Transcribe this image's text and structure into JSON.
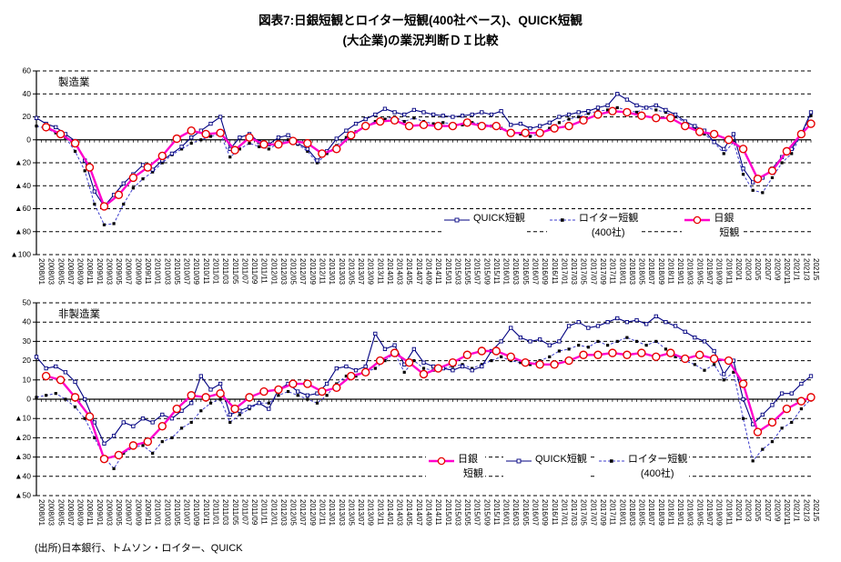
{
  "title": {
    "line1": "図表7:日銀短観とロイター短観(400社ベース)、QUICK短観",
    "line2": "(大企業)の業況判断ＤＩ比較"
  },
  "source": "(出所)日本銀行、トムソン・ロイター、QUICK",
  "colors": {
    "quick_line": "#000080",
    "reuters_line": "#3c3ccc",
    "reuters_marker": "#000000",
    "tankan_line": "#ff00cc",
    "tankan_marker": "#e60000",
    "grid": "#000000"
  },
  "x_labels": [
    "2008/01",
    "2008/03",
    "2008/05",
    "2008/07",
    "2008/09",
    "2008/11",
    "2009/01",
    "2009/03",
    "2009/05",
    "2009/07",
    "2009/09",
    "2009/11",
    "2010/01",
    "2010/03",
    "2010/05",
    "2010/07",
    "2010/09",
    "2010/11",
    "2011/01",
    "2011/03",
    "2011/05",
    "2011/07",
    "2011/09",
    "2011/11",
    "2012/01",
    "2012/03",
    "2012/05",
    "2012/07",
    "2012/09",
    "2012/11",
    "2013/01",
    "2013/03",
    "2013/05",
    "2013/07",
    "2013/09",
    "2013/11",
    "2014/01",
    "2014/03",
    "2014/05",
    "2014/07",
    "2014/09",
    "2014/11",
    "2015/01",
    "2015/03",
    "2015/05",
    "2015/07",
    "2015/09",
    "2015/11",
    "2016/01",
    "2016/03",
    "2016/05",
    "2016/07",
    "2016/09",
    "2016/11",
    "2017/01",
    "2017/03",
    "2017/05",
    "2017/07",
    "2017/09",
    "2017/11",
    "2018/01",
    "2018/03",
    "2018/05",
    "2018/07",
    "2018/09",
    "2018/11",
    "2019/01",
    "2019/03",
    "2019/05",
    "2019/07",
    "2019/09",
    "2019/11",
    "2020/1",
    "2020/3",
    "2020/5",
    "2020/7",
    "2020/9",
    "2020/11",
    "2021/1",
    "2021/3",
    "2021/5"
  ],
  "chart_data": [
    {
      "type": "line",
      "panel_label": "製造業",
      "x_note": "monthly series sampled at the bi-monthly axis ticks 2008/01-2021/5; 日銀短観 is quarterly",
      "y_axis": {
        "max": 60,
        "min": -100,
        "step": 20,
        "ticks": [
          "60",
          "40",
          "20",
          "0",
          "▲20",
          "▲40",
          "▲60",
          "▲80",
          "▲100"
        ]
      },
      "series": {
        "quick": {
          "name": "QUICK短観",
          "values": [
            19,
            14,
            11,
            5,
            -1,
            -18,
            -45,
            -58,
            -48,
            -38,
            -30,
            -22,
            -26,
            -18,
            -12,
            -6,
            2,
            8,
            14,
            20,
            -8,
            2,
            5,
            -2,
            -4,
            2,
            4,
            -3,
            -8,
            -18,
            -10,
            1,
            8,
            14,
            18,
            22,
            27,
            24,
            22,
            26,
            24,
            22,
            21,
            20,
            21,
            22,
            24,
            22,
            25,
            13,
            14,
            10,
            12,
            15,
            20,
            22,
            24,
            25,
            28,
            30,
            40,
            35,
            30,
            28,
            30,
            26,
            22,
            16,
            12,
            8,
            -2,
            -8,
            5,
            -25,
            -37,
            -33,
            -25,
            -15,
            -8,
            5,
            24
          ]
        },
        "reuters": {
          "name": "ロイター短観",
          "name2": "(400社)",
          "values": [
            12,
            10,
            6,
            2,
            -10,
            -27,
            -56,
            -74,
            -73,
            -56,
            -42,
            -34,
            -28,
            -20,
            -13,
            -8,
            -3,
            0,
            3,
            5,
            -15,
            -8,
            -3,
            -6,
            -8,
            -3,
            0,
            -4,
            -10,
            -20,
            -12,
            -5,
            2,
            7,
            12,
            16,
            18,
            20,
            16,
            19,
            16,
            14,
            15,
            14,
            13,
            15,
            14,
            12,
            10,
            8,
            5,
            3,
            5,
            10,
            15,
            18,
            20,
            23,
            25,
            26,
            28,
            26,
            24,
            28,
            26,
            24,
            20,
            15,
            10,
            5,
            -2,
            -12,
            -2,
            -30,
            -44,
            -46,
            -33,
            -20,
            -12,
            5,
            21
          ]
        },
        "tankan": {
          "name": "日銀",
          "name2": "短観",
          "points": [
            [
              "2008/03",
              11
            ],
            [
              "2008/06",
              5
            ],
            [
              "2008/09",
              -3
            ],
            [
              "2008/12",
              -24
            ],
            [
              "2009/03",
              -58
            ],
            [
              "2009/06",
              -48
            ],
            [
              "2009/09",
              -33
            ],
            [
              "2009/12",
              -24
            ],
            [
              "2010/03",
              -14
            ],
            [
              "2010/06",
              1
            ],
            [
              "2010/09",
              8
            ],
            [
              "2010/12",
              5
            ],
            [
              "2011/03",
              6
            ],
            [
              "2011/06",
              -9
            ],
            [
              "2011/09",
              2
            ],
            [
              "2011/12",
              -4
            ],
            [
              "2012/03",
              -4
            ],
            [
              "2012/06",
              -1
            ],
            [
              "2012/09",
              -3
            ],
            [
              "2012/12",
              -12
            ],
            [
              "2013/03",
              -8
            ],
            [
              "2013/06",
              4
            ],
            [
              "2013/09",
              12
            ],
            [
              "2013/12",
              16
            ],
            [
              "2014/03",
              17
            ],
            [
              "2014/06",
              12
            ],
            [
              "2014/09",
              13
            ],
            [
              "2014/12",
              12
            ],
            [
              "2015/03",
              12
            ],
            [
              "2015/06",
              15
            ],
            [
              "2015/09",
              12
            ],
            [
              "2015/12",
              12
            ],
            [
              "2016/03",
              6
            ],
            [
              "2016/06",
              6
            ],
            [
              "2016/09",
              6
            ],
            [
              "2016/12",
              10
            ],
            [
              "2017/03",
              12
            ],
            [
              "2017/06",
              17
            ],
            [
              "2017/09",
              22
            ],
            [
              "2017/12",
              25
            ],
            [
              "2018/03",
              24
            ],
            [
              "2018/06",
              21
            ],
            [
              "2018/09",
              19
            ],
            [
              "2018/12",
              19
            ],
            [
              "2019/03",
              12
            ],
            [
              "2019/06",
              7
            ],
            [
              "2019/09",
              5
            ],
            [
              "2019/12",
              0
            ],
            [
              "2020/03",
              -8
            ],
            [
              "2020/06",
              -34
            ],
            [
              "2020/09",
              -27
            ],
            [
              "2020/12",
              -10
            ],
            [
              "2021/03",
              5
            ],
            [
              "2021/06",
              14
            ]
          ]
        }
      }
    },
    {
      "type": "line",
      "panel_label": "非製造業",
      "x_note": "monthly series sampled at the bi-monthly axis ticks 2008/01-2021/5; 日銀短観 is quarterly",
      "y_axis": {
        "max": 50,
        "min": -50,
        "step": 10,
        "ticks": [
          "50",
          "40",
          "30",
          "20",
          "10",
          "0",
          "▲10",
          "▲20",
          "▲30",
          "▲40",
          "▲50"
        ]
      },
      "series": {
        "quick": {
          "name": "QUICK短観",
          "values": [
            22,
            16,
            17,
            14,
            9,
            0,
            -12,
            -23,
            -19,
            -12,
            -14,
            -10,
            -12,
            -8,
            -10,
            -6,
            -2,
            12,
            5,
            8,
            -8,
            -6,
            -4,
            -2,
            -5,
            5,
            8,
            4,
            2,
            3,
            8,
            16,
            17,
            15,
            17,
            34,
            26,
            28,
            18,
            26,
            19,
            17,
            16,
            15,
            17,
            15,
            17,
            25,
            30,
            37,
            32,
            30,
            31,
            28,
            30,
            38,
            40,
            37,
            38,
            40,
            42,
            40,
            41,
            39,
            43,
            40,
            38,
            35,
            32,
            30,
            25,
            13,
            20,
            0,
            -13,
            -8,
            -3,
            3,
            3,
            8,
            12
          ]
        },
        "reuters": {
          "name": "ロイター短観",
          "name2": "(400社)",
          "values": [
            1,
            2,
            3,
            0,
            -4,
            -10,
            -20,
            -30,
            -36,
            -28,
            -25,
            -24,
            -28,
            -22,
            -20,
            -15,
            -12,
            -6,
            -2,
            0,
            -12,
            -8,
            -5,
            -2,
            -2,
            2,
            4,
            2,
            0,
            -2,
            2,
            8,
            12,
            12,
            14,
            16,
            20,
            24,
            14,
            20,
            16,
            15,
            16,
            17,
            18,
            16,
            18,
            20,
            22,
            20,
            19,
            18,
            20,
            22,
            25,
            26,
            28,
            27,
            30,
            28,
            30,
            32,
            30,
            28,
            30,
            26,
            22,
            20,
            18,
            15,
            18,
            10,
            14,
            -10,
            -32,
            -26,
            -22,
            -15,
            -12,
            -5,
            0
          ]
        },
        "tankan": {
          "name": "日銀",
          "name2": "短観",
          "points": [
            [
              "2008/03",
              12
            ],
            [
              "2008/06",
              10
            ],
            [
              "2008/09",
              1
            ],
            [
              "2008/12",
              -9
            ],
            [
              "2009/03",
              -31
            ],
            [
              "2009/06",
              -29
            ],
            [
              "2009/09",
              -24
            ],
            [
              "2009/12",
              -22
            ],
            [
              "2010/03",
              -14
            ],
            [
              "2010/06",
              -5
            ],
            [
              "2010/09",
              2
            ],
            [
              "2010/12",
              1
            ],
            [
              "2011/03",
              3
            ],
            [
              "2011/06",
              -5
            ],
            [
              "2011/09",
              1
            ],
            [
              "2011/12",
              4
            ],
            [
              "2012/03",
              5
            ],
            [
              "2012/06",
              8
            ],
            [
              "2012/09",
              8
            ],
            [
              "2012/12",
              4
            ],
            [
              "2013/03",
              6
            ],
            [
              "2013/06",
              12
            ],
            [
              "2013/09",
              14
            ],
            [
              "2013/12",
              20
            ],
            [
              "2014/03",
              24
            ],
            [
              "2014/06",
              19
            ],
            [
              "2014/09",
              13
            ],
            [
              "2014/12",
              16
            ],
            [
              "2015/03",
              19
            ],
            [
              "2015/06",
              23
            ],
            [
              "2015/09",
              25
            ],
            [
              "2015/12",
              25
            ],
            [
              "2016/03",
              22
            ],
            [
              "2016/06",
              19
            ],
            [
              "2016/09",
              18
            ],
            [
              "2016/12",
              18
            ],
            [
              "2017/03",
              20
            ],
            [
              "2017/06",
              23
            ],
            [
              "2017/09",
              23
            ],
            [
              "2017/12",
              24
            ],
            [
              "2018/03",
              23
            ],
            [
              "2018/06",
              24
            ],
            [
              "2018/09",
              22
            ],
            [
              "2018/12",
              24
            ],
            [
              "2019/03",
              21
            ],
            [
              "2019/06",
              23
            ],
            [
              "2019/09",
              21
            ],
            [
              "2019/12",
              20
            ],
            [
              "2020/03",
              8
            ],
            [
              "2020/06",
              -17
            ],
            [
              "2020/09",
              -12
            ],
            [
              "2020/12",
              -5
            ],
            [
              "2021/03",
              -1
            ],
            [
              "2021/06",
              1
            ]
          ]
        }
      }
    }
  ]
}
